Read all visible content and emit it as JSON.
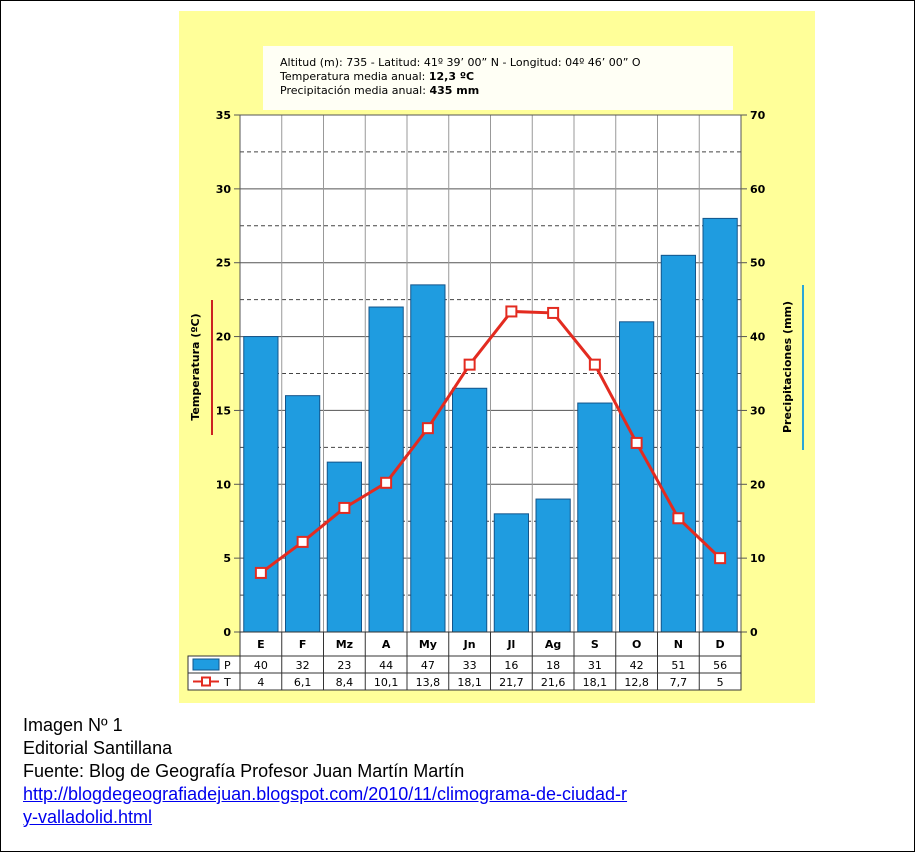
{
  "header": {
    "line1": "Altitud (m): 735 - Latitud: 41º 39’ 00” N - Longitud: 04º 46’ 00” O",
    "line2_label": "Temperatura media anual: ",
    "line2_value": "12,3 ºC",
    "line3_label": "Precipitación media anual: ",
    "line3_value": "435 mm"
  },
  "chart_data": {
    "type": "bar",
    "categories": [
      "E",
      "F",
      "Mz",
      "A",
      "My",
      "Jn",
      "Jl",
      "Ag",
      "S",
      "O",
      "N",
      "D"
    ],
    "series": [
      {
        "name": "P",
        "type": "bar",
        "axis": "right",
        "values": [
          40,
          32,
          23,
          44,
          47,
          33,
          16,
          18,
          31,
          42,
          51,
          56
        ],
        "value_labels": [
          "40",
          "32",
          "23",
          "44",
          "47",
          "33",
          "16",
          "18",
          "31",
          "42",
          "51",
          "56"
        ]
      },
      {
        "name": "T",
        "type": "line",
        "axis": "left",
        "values": [
          4,
          6.1,
          8.4,
          10.1,
          13.8,
          18.1,
          21.7,
          21.6,
          18.1,
          12.8,
          7.7,
          5
        ],
        "value_labels": [
          "4",
          "6,1",
          "8,4",
          "10,1",
          "13,8",
          "18,1",
          "21,7",
          "21,6",
          "18,1",
          "12,8",
          "7,7",
          "5"
        ]
      }
    ],
    "y_left": {
      "label": "Temperatura (ºC)",
      "ylim": [
        0,
        35
      ],
      "ticks": [
        "0",
        "5",
        "10",
        "15",
        "20",
        "25",
        "30",
        "35"
      ]
    },
    "y_right": {
      "label": "Precipitaciones (mm)",
      "ylim": [
        0,
        70
      ],
      "ticks": [
        "0",
        "10",
        "20",
        "30",
        "40",
        "50",
        "60",
        "70"
      ]
    },
    "grid": true,
    "legend": "table below chart",
    "colors": {
      "bar": "#1f9ce0",
      "bar_edge": "#13548a",
      "line": "#e32b20",
      "temp_axis_mark": "#cc2222",
      "precip_axis_mark": "#2aa6d8",
      "background": "#ffff99"
    }
  },
  "caption": {
    "line1": "Imagen Nº 1",
    "line2": "Editorial Santillana",
    "line3": "Fuente: Blog de Geografía Profesor Juan Martín Martín",
    "link1": "http://blogdegeografiadejuan.blogspot.com/2010/11/climograma-de-ciudad-r",
    "link2": "y-valladolid.html"
  }
}
